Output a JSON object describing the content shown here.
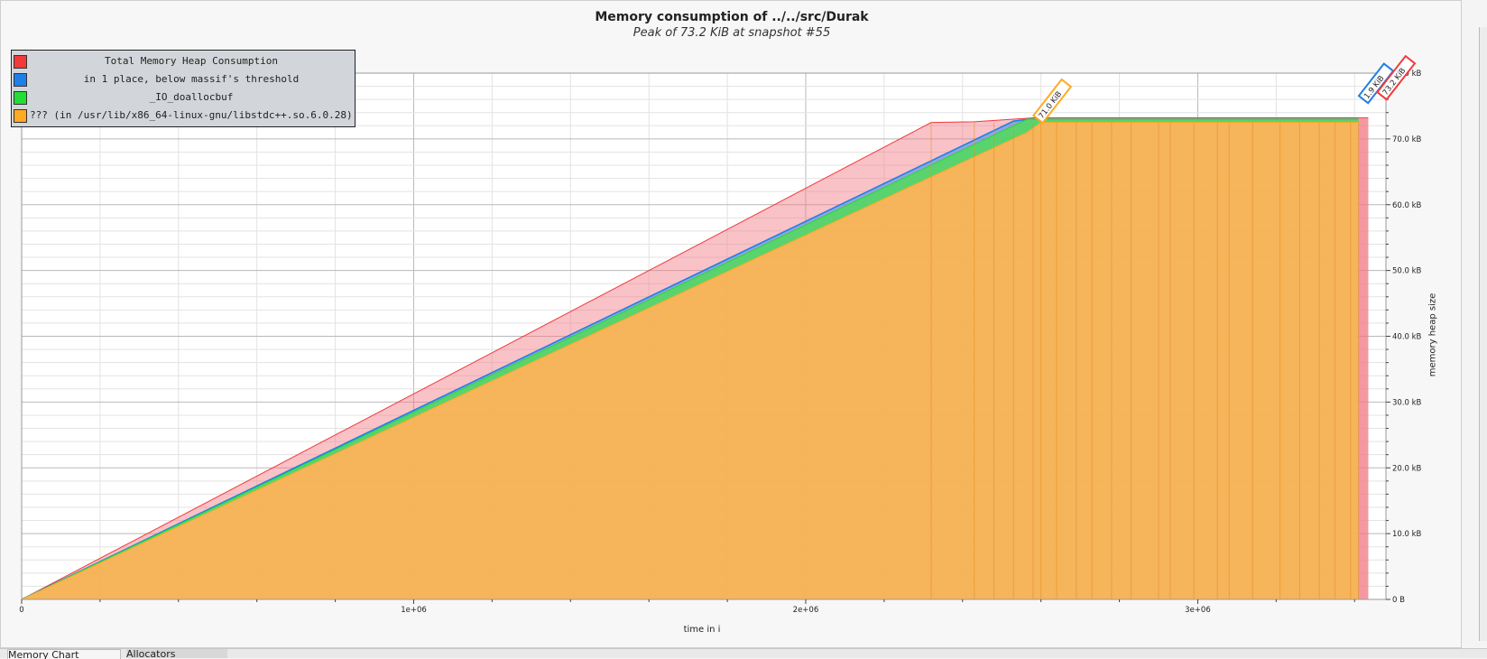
{
  "window": {
    "tabs": [
      {
        "label": "Memory Chart"
      },
      {
        "label": "Allocators"
      }
    ]
  },
  "chart_data": {
    "type": "area",
    "title": "Memory consumption of ../../src/Durak",
    "subtitle": "Peak of 73.2 KiB at snapshot #55",
    "xlabel": "time in i",
    "ylabel": "memory heap size",
    "xlim": [
      0,
      3480000
    ],
    "ylim": [
      0,
      80
    ],
    "x_ticks": [
      {
        "value": 0,
        "label": "0"
      },
      {
        "value": 1000000,
        "label": "1e+06"
      },
      {
        "value": 2000000,
        "label": "2e+06"
      },
      {
        "value": 3000000,
        "label": "3e+06"
      }
    ],
    "y_ticks": [
      {
        "value": 0,
        "label": "0 B"
      },
      {
        "value": 10,
        "label": "10.0 kB"
      },
      {
        "value": 20,
        "label": "20.0 kB"
      },
      {
        "value": 30,
        "label": "30.0 kB"
      },
      {
        "value": 40,
        "label": "40.0 kB"
      },
      {
        "value": 50,
        "label": "50.0 kB"
      },
      {
        "value": 60,
        "label": "60.0 kB"
      },
      {
        "value": 70,
        "label": "70.0 kB"
      },
      {
        "value": 80,
        "label": "80.0 kB"
      }
    ],
    "grid": true,
    "legend_position": "top-left",
    "series": [
      {
        "name": "Total Memory Heap Consumption",
        "color": "#f23a3a",
        "x": [
          0,
          2320000,
          2430000,
          2580000,
          3410000,
          3435000
        ],
        "y": [
          0,
          72.5,
          72.6,
          73.2,
          73.2,
          73.2
        ]
      },
      {
        "name": "in 1 place, below massif's threshold",
        "color": "#1f7fe8",
        "x": [
          0,
          2530000,
          2570000,
          3410000
        ],
        "y": [
          0,
          72.7,
          73.0,
          73.0
        ]
      },
      {
        "name": "_IO_doallocbuf",
        "color": "#22dd33",
        "x": [
          0,
          2565000,
          3410000
        ],
        "y": [
          0,
          73.0,
          73.0
        ]
      },
      {
        "name": "??? (in /usr/lib/x86_64-linux-gnu/libstdc++.so.6.0.28)",
        "color": "#ffaa22",
        "x": [
          0,
          2565000,
          2600000,
          3410000
        ],
        "y": [
          0,
          71.0,
          72.5,
          72.5
        ]
      }
    ],
    "annotations": [
      {
        "text": "71.0 KiB",
        "x": 2600000,
        "y": 73.0
      },
      {
        "text": "1.9 KiB",
        "x": 3430000,
        "y": 76.0
      },
      {
        "text": "73.2 KiB",
        "x": 3445000,
        "y": 76.0
      }
    ]
  }
}
